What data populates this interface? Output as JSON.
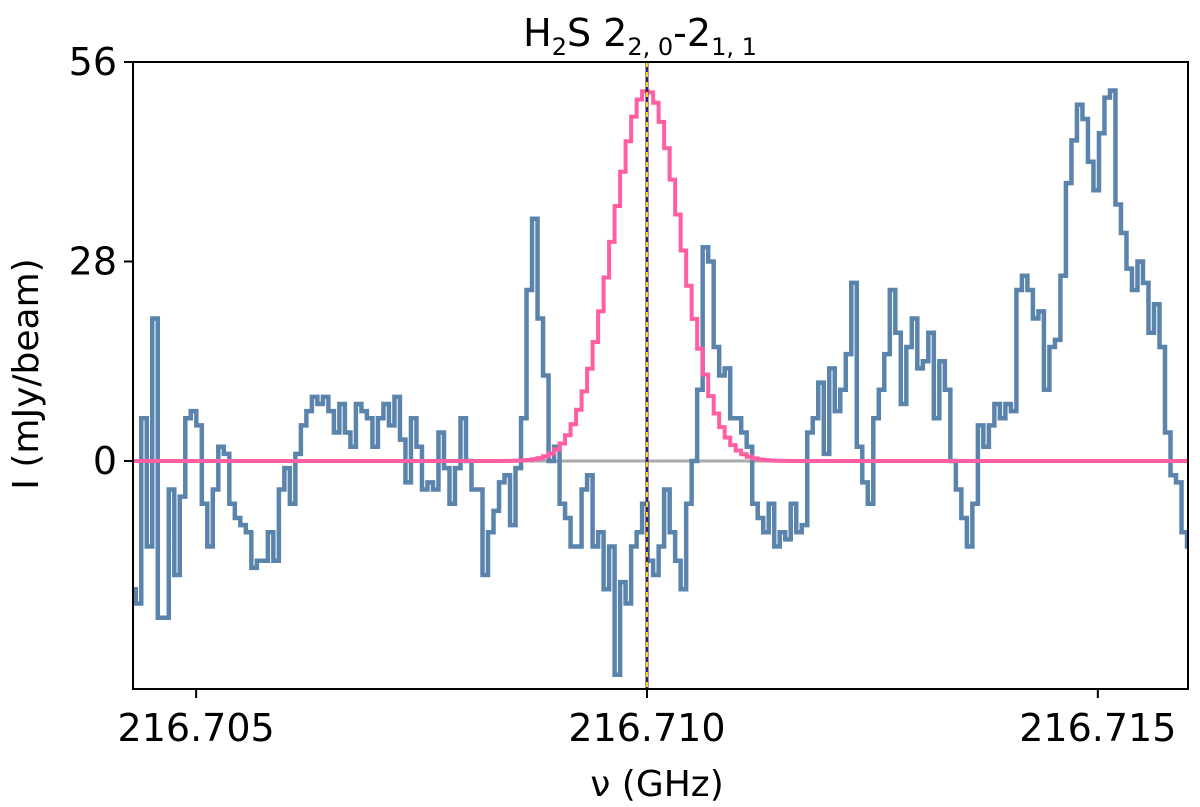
{
  "chart_data": {
    "type": "line",
    "title_main": "H",
    "title_sub1": "2",
    "title_mid": "S 2",
    "title_sub2": "2, 0",
    "title_dash": "-2",
    "title_sub3": "1, 1",
    "xlabel": "ν (GHz)",
    "ylabel": "I (mJy/beam)",
    "xlim": [
      216.7043,
      216.716
    ],
    "ylim": [
      -32,
      56
    ],
    "x_ticks": [
      216.705,
      216.71,
      216.715
    ],
    "x_tick_labels": [
      "216.705",
      "216.710",
      "216.715"
    ],
    "y_ticks": [
      0,
      28,
      56
    ],
    "y_tick_labels": [
      "0",
      "28",
      "56"
    ],
    "rest_frequency": 216.71,
    "colors": {
      "observed": "#5b84ad",
      "model": "#ff5fa2",
      "zero_line": "#aaaaaa",
      "center_dark": "#3a1f5c",
      "center_light": "#ffd21a"
    },
    "series": [
      {
        "kind": "observed-spectrum",
        "style": "steps-mid",
        "x0": 216.7043,
        "dx": 6.104e-05,
        "values": [
          -18,
          -20,
          6,
          -12,
          20,
          -22,
          -22,
          -4,
          -16,
          -5,
          6,
          7,
          5,
          -6,
          -12,
          -4,
          2,
          1,
          -6,
          -8,
          -9,
          -10,
          -15,
          -14,
          -14,
          -10,
          -14,
          -4,
          -1,
          -6,
          1,
          5,
          7,
          9,
          8,
          9,
          7,
          4,
          8,
          4,
          2,
          8,
          7,
          6,
          2,
          6,
          8,
          5,
          9,
          3,
          -3,
          6,
          2,
          -4,
          -3,
          -4,
          4,
          -1,
          -6,
          -1,
          6,
          0,
          -4,
          -4,
          -16,
          -10,
          -7,
          -3,
          -2,
          -9,
          -1,
          6,
          24,
          34,
          20,
          12,
          0,
          2,
          -6,
          -8,
          -12,
          -12,
          -4,
          -2,
          -12,
          -10,
          -18,
          -12,
          -30,
          -17,
          -20,
          -12,
          -10,
          -6,
          -14,
          -16,
          -12,
          -4,
          -10,
          -14,
          -18,
          -6,
          0,
          10,
          30,
          28,
          16,
          12,
          13,
          6,
          6,
          4,
          2,
          -6,
          -8,
          -10,
          -6,
          -12,
          -10,
          -11,
          -6,
          -10,
          -9,
          4,
          6,
          11,
          1,
          13,
          7,
          10,
          15,
          25,
          2,
          -3,
          -6,
          6,
          10,
          15,
          24,
          18,
          8,
          16,
          20,
          13,
          14,
          18,
          6,
          14,
          10,
          0,
          -4,
          -8,
          -12,
          -6,
          5,
          2,
          5,
          8,
          6,
          8,
          7,
          24,
          26,
          24,
          20,
          21,
          10,
          16,
          17,
          26,
          39,
          45,
          50,
          48,
          42,
          38,
          46,
          51,
          52,
          36,
          32,
          27,
          24,
          28,
          25,
          18,
          22,
          16,
          4,
          -2,
          -3,
          -10,
          -12,
          -7,
          -1,
          11,
          4,
          10,
          0,
          -2,
          7,
          5,
          11,
          7,
          17,
          16,
          27,
          18,
          22,
          17,
          16,
          22,
          8,
          5,
          -6,
          -3,
          -9,
          -8,
          3,
          2,
          3,
          2,
          4,
          16,
          18,
          22,
          24,
          18,
          6,
          0,
          -1,
          -2,
          -12,
          2,
          11,
          10,
          12,
          5,
          6,
          2,
          -3,
          -1,
          5,
          26,
          27,
          14,
          4,
          12,
          20,
          18,
          -4,
          -9,
          -10,
          0,
          8,
          -1,
          -4,
          -10,
          -6,
          5,
          7,
          12,
          8,
          0,
          -2,
          2,
          0,
          -8,
          -2,
          16,
          14,
          9,
          20,
          18,
          16,
          24,
          26,
          18,
          16,
          22,
          12,
          13,
          24,
          11,
          -2,
          -2,
          -4,
          9,
          -7,
          -3,
          6,
          -6,
          -10,
          -14,
          -8,
          -2,
          -12,
          -6,
          -22,
          -16,
          -12,
          -4,
          -10,
          -6,
          -16,
          -18,
          -2,
          -4,
          -4,
          -1,
          -4,
          -6,
          -8,
          -6,
          6,
          3,
          -3,
          -6,
          -12,
          -6,
          -2,
          -10,
          -8,
          -4,
          -4,
          -4,
          4,
          -2,
          -6,
          -12,
          -2,
          -10,
          -16,
          -8,
          -14,
          2,
          -10,
          -6,
          -2,
          -4,
          -8,
          -16,
          -12,
          -22,
          -10,
          -6,
          -12,
          -12,
          -2,
          -6,
          6,
          -4,
          0,
          -4,
          -6,
          -18,
          -14,
          -4,
          -6,
          -2,
          -8,
          -16,
          -4,
          -8,
          6,
          -12,
          0,
          4,
          0,
          -12,
          -8,
          -6,
          -16,
          -6,
          0,
          6,
          0,
          -1,
          -6,
          -6,
          -12,
          -8,
          -12,
          -2,
          -6,
          2,
          -8,
          -2,
          -4,
          -8,
          8,
          -8,
          -16,
          -8,
          -2,
          -2,
          -10,
          -4,
          -8,
          -3,
          -6,
          -14,
          -8,
          -4,
          -8,
          -2,
          -8,
          4,
          2,
          -2,
          -6,
          -6,
          -4,
          -4,
          -8,
          -14
        ]
      },
      {
        "kind": "model-fit",
        "style": "steps-mid",
        "amplitude": 52,
        "center": 216.71,
        "sigma": 0.00038
      }
    ]
  }
}
